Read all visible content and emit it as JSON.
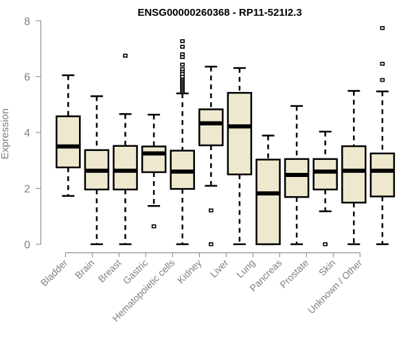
{
  "chart_data": {
    "type": "boxplot",
    "title": "ENSG00000260368 - RP11-521I2.3",
    "xlabel": "",
    "ylabel": "Expression",
    "ylim": [
      0,
      8
    ],
    "yticks": [
      "0",
      "2",
      "4",
      "6",
      "8"
    ],
    "grid": false,
    "colors": {
      "box_fill": "#EEE8CE",
      "box_stroke": "#000000",
      "axis": "#808080"
    },
    "categories": [
      "Bladder",
      "Brain",
      "Breast",
      "Gastric",
      "Hematopoietic cells",
      "Kidney",
      "Liver",
      "Lung",
      "Pancreas",
      "Prostate",
      "Skin",
      "Unknown / Other"
    ],
    "boxes": [
      {
        "min": 1.73,
        "q1": 2.75,
        "median": 3.5,
        "q3": 4.58,
        "max": 6.05,
        "outliers": []
      },
      {
        "min": 0,
        "q1": 1.96,
        "median": 2.63,
        "q3": 3.37,
        "max": 5.3,
        "outliers": []
      },
      {
        "min": 0,
        "q1": 1.96,
        "median": 2.63,
        "q3": 3.52,
        "max": 4.66,
        "outliers": [
          6.75
        ]
      },
      {
        "min": 1.37,
        "q1": 2.58,
        "median": 3.25,
        "q3": 3.5,
        "max": 4.64,
        "outliers": [
          0.64
        ]
      },
      {
        "min": 0,
        "q1": 1.98,
        "median": 2.6,
        "q3": 3.35,
        "max": 5.4,
        "outliers": [
          5.45,
          5.5,
          5.55,
          5.6,
          5.65,
          5.7,
          5.75,
          5.8,
          5.85,
          5.9,
          5.95,
          6.0,
          6.1,
          6.2,
          6.27,
          6.43,
          6.7,
          6.8,
          7.07,
          7.27
        ]
      },
      {
        "min": 2.09,
        "q1": 3.54,
        "median": 4.33,
        "q3": 4.83,
        "max": 6.36,
        "outliers": [
          1.21,
          0
        ]
      },
      {
        "min": 0,
        "q1": 2.5,
        "median": 4.22,
        "q3": 5.42,
        "max": 6.31,
        "outliers": []
      },
      {
        "min": 0,
        "q1": 0,
        "median": 1.82,
        "q3": 3.03,
        "max": 3.89,
        "outliers": []
      },
      {
        "min": 0,
        "q1": 1.69,
        "median": 2.48,
        "q3": 3.05,
        "max": 4.95,
        "outliers": []
      },
      {
        "min": 1.18,
        "q1": 1.96,
        "median": 2.6,
        "q3": 3.05,
        "max": 4.03,
        "outliers": [
          0
        ]
      },
      {
        "min": 0,
        "q1": 1.49,
        "median": 2.63,
        "q3": 3.51,
        "max": 5.49,
        "outliers": []
      },
      {
        "min": 0,
        "q1": 1.71,
        "median": 2.63,
        "q3": 3.25,
        "max": 5.47,
        "outliers": [
          5.88,
          6.46,
          7.74
        ]
      }
    ]
  }
}
